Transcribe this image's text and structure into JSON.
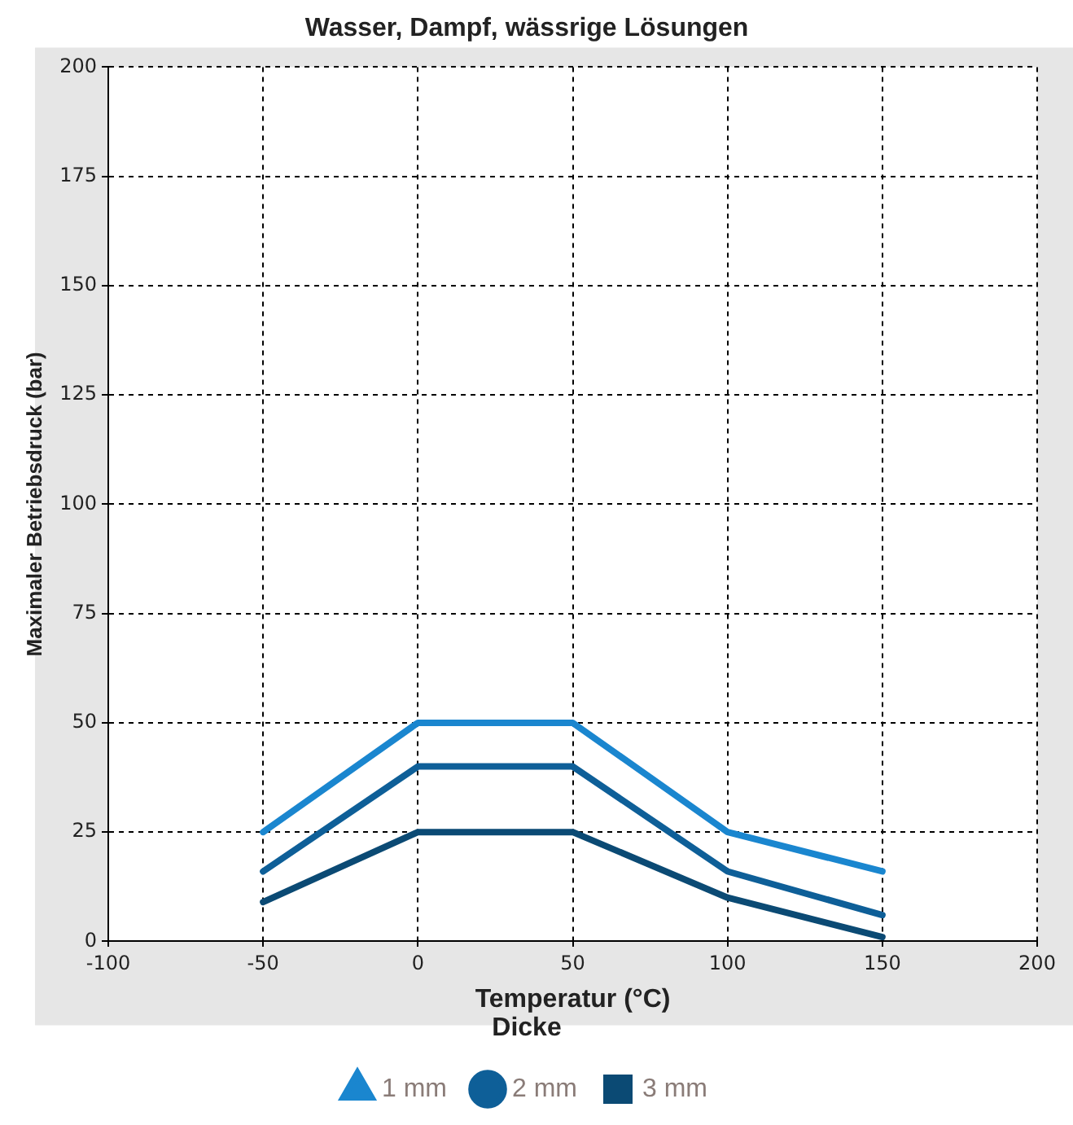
{
  "chart_data": {
    "type": "line",
    "title": "Wasser, Dampf, wässrige Lösungen",
    "xlabel": "Temperatur (°C)",
    "ylabel": "Maximaler Betriebsdruck (bar)",
    "legend_title": "Dicke",
    "x": [
      -50,
      0,
      50,
      100,
      150
    ],
    "series": [
      {
        "name": "1 mm",
        "color": "#1a86cf",
        "values": [
          25,
          50,
          50,
          25,
          16
        ]
      },
      {
        "name": "2 mm",
        "color": "#0e5f98",
        "values": [
          16,
          40,
          40,
          16,
          6
        ]
      },
      {
        "name": "3 mm",
        "color": "#0b4a74",
        "values": [
          9,
          25,
          25,
          10,
          1
        ]
      }
    ],
    "xlim": [
      -100,
      200
    ],
    "xticks": [
      -100,
      -50,
      0,
      50,
      100,
      150,
      200
    ],
    "ylim": [
      0,
      200
    ],
    "yticks": [
      0,
      25,
      50,
      75,
      100,
      125,
      150,
      175,
      200
    ],
    "grid": true,
    "legend": "bottom",
    "line_style": "solid"
  }
}
